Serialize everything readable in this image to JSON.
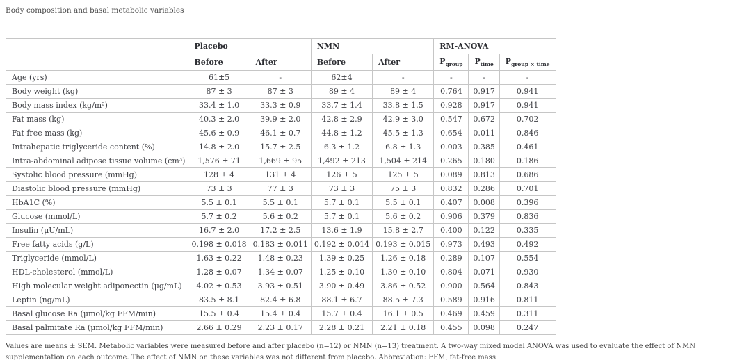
{
  "page": {
    "title": "Body composition and basal metabolic variables",
    "footnote": "Values are means ± SEM. Metabolic variables were measured before and after placebo (n=12) or NMN (n=13) treatment. A two-way mixed model ANOVA was used to evaluate the effect of NMN supplementation on each outcome. The effect of NMN on these variables was not different from placebo. Abbreviation: FFM, fat-free mass"
  },
  "colors": {
    "background": "#ffffff",
    "table_border": "#c6c6c6",
    "body_text": "#3f4045",
    "header_text": "#2d2e33"
  },
  "table": {
    "groups": [
      "Placebo",
      "NMN",
      "RM-ANOVA"
    ],
    "sub_headers": [
      "Before",
      "After",
      "Before",
      "After"
    ],
    "p_headers": [
      {
        "base": "P",
        "sub": "group"
      },
      {
        "base": "P",
        "sub": "time"
      },
      {
        "base": "P",
        "sub": "group × time"
      }
    ],
    "rows": [
      [
        "Age (yrs)",
        "61±5",
        "-",
        "62±4",
        "-",
        "-",
        "-",
        "-"
      ],
      [
        "Body weight (kg)",
        "87 ± 3",
        "87 ± 3",
        "89 ± 4",
        "89 ± 4",
        "0.764",
        "0.917",
        "0.941"
      ],
      [
        "Body mass index (kg/m²)",
        "33.4 ± 1.0",
        "33.3 ± 0.9",
        "33.7 ± 1.4",
        "33.8 ± 1.5",
        "0.928",
        "0.917",
        "0.941"
      ],
      [
        "Fat mass (kg)",
        "40.3 ± 2.0",
        "39.9 ± 2.0",
        "42.8 ± 2.9",
        "42.9 ± 3.0",
        "0.547",
        "0.672",
        "0.702"
      ],
      [
        "Fat free mass (kg)",
        "45.6 ± 0.9",
        "46.1 ± 0.7",
        "44.8 ± 1.2",
        "45.5 ± 1.3",
        "0.654",
        "0.011",
        "0.846"
      ],
      [
        "Intrahepatic triglyceride content (%)",
        "14.8 ± 2.0",
        "15.7 ± 2.5",
        "6.3 ± 1.2",
        "6.8 ± 1.3",
        "0.003",
        "0.385",
        "0.461"
      ],
      [
        "Intra-abdominal adipose tissue volume (cm³)",
        "1,576 ± 71",
        "1,669 ± 95",
        "1,492 ± 213",
        "1,504 ± 214",
        "0.265",
        "0.180",
        "0.186"
      ],
      [
        "Systolic blood pressure (mmHg)",
        "128 ± 4",
        "131 ± 4",
        "126 ± 5",
        "125 ± 5",
        "0.089",
        "0.813",
        "0.686"
      ],
      [
        "Diastolic blood pressure (mmHg)",
        "73 ± 3",
        "77 ± 3",
        "73 ± 3",
        "75 ± 3",
        "0.832",
        "0.286",
        "0.701"
      ],
      [
        "HbA1C (%)",
        "5.5 ± 0.1",
        "5.5 ± 0.1",
        "5.7 ± 0.1",
        "5.5 ± 0.1",
        "0.407",
        "0.008",
        "0.396"
      ],
      [
        "Glucose (mmol/L)",
        "5.7 ± 0.2",
        "5.6 ± 0.2",
        "5.7 ± 0.1",
        "5.6 ± 0.2",
        "0.906",
        "0.379",
        "0.836"
      ],
      [
        "Insulin (μU/mL)",
        "16.7 ± 2.0",
        "17.2 ± 2.5",
        "13.6 ± 1.9",
        "15.8 ± 2.7",
        "0.400",
        "0.122",
        "0.335"
      ],
      [
        "Free fatty acids (g/L)",
        "0.198 ± 0.018",
        "0.183 ± 0.011",
        "0.192 ± 0.014",
        "0.193 ± 0.015",
        "0.973",
        "0.493",
        "0.492"
      ],
      [
        "Triglyceride (mmol/L)",
        "1.63 ± 0.22",
        "1.48 ± 0.23",
        "1.39 ± 0.25",
        "1.26 ± 0.18",
        "0.289",
        "0.107",
        "0.554"
      ],
      [
        "HDL-cholesterol (mmol/L)",
        "1.28 ± 0.07",
        "1.34 ± 0.07",
        "1.25 ± 0.10",
        "1.30 ± 0.10",
        "0.804",
        "0.071",
        "0.930"
      ],
      [
        "High molecular weight adiponectin (μg/mL)",
        "4.02 ± 0.53",
        "3.93 ± 0.51",
        "3.90 ± 0.49",
        "3.86 ± 0.52",
        "0.900",
        "0.564",
        "0.843"
      ],
      [
        "Leptin (ng/mL)",
        "83.5 ± 8.1",
        "82.4 ± 6.8",
        "88.1 ± 6.7",
        "88.5 ± 7.3",
        "0.589",
        "0.916",
        "0.811"
      ],
      [
        "Basal glucose Ra (μmol/kg FFM/min)",
        "15.5 ± 0.4",
        "15.4 ± 0.4",
        "15.7 ± 0.4",
        "16.1 ± 0.5",
        "0.469",
        "0.459",
        "0.311"
      ],
      [
        "Basal palmitate Ra (μmol/kg FFM/min)",
        "2.66 ± 0.29",
        "2.23 ± 0.17",
        "2.28 ± 0.21",
        "2.21 ± 0.18",
        "0.455",
        "0.098",
        "0.247"
      ]
    ]
  }
}
